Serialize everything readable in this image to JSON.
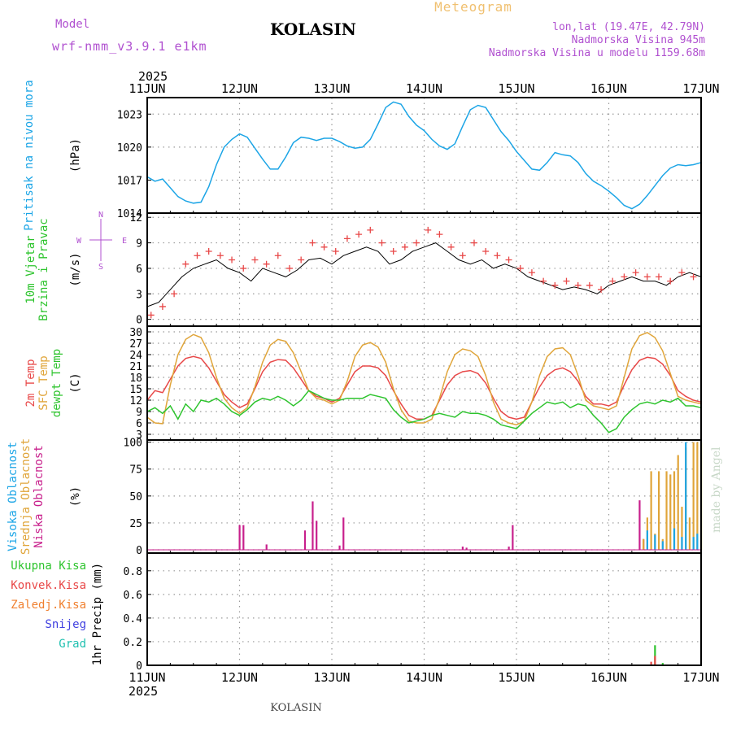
{
  "header": {
    "model_label": "Model",
    "model_name": "wrf-nmm_v3.9.1 e1km",
    "location": "KOLASIN",
    "meteogram_label": "Meteogram",
    "lonlat": "lon,lat (19.47E, 42.79N)",
    "elevation": "Nadmorska Visina 945m",
    "model_elevation": "Nadmorska Visina u modelu 1159.68m",
    "footer_location": "KOLASIN",
    "credit": "made by Angel"
  },
  "time_axis": {
    "year": "2025",
    "ticks": [
      "11JUN",
      "12JUN",
      "13JUN",
      "14JUN",
      "15JUN",
      "16JUN",
      "17JUN"
    ],
    "range_hours": [
      0,
      144
    ]
  },
  "colors": {
    "pressure": "#1ca5e6",
    "temp2m": "#e84848",
    "sfc_temp": "#e0a53a",
    "dewpt": "#2ec42e",
    "high_cloud": "#1ca5e6",
    "mid_cloud": "#e0a53a",
    "low_cloud": "#c8208c",
    "total_precip": "#2ec42e",
    "conv_precip": "#e84848",
    "frozen_precip": "#f08030",
    "snow": "#4040e0",
    "graupel": "#20c0b0",
    "purple_label": "#b050d0",
    "wind_center": "#000000",
    "wind_gust": "#e84848"
  },
  "chart_data": [
    {
      "type": "line",
      "panel": "pressure",
      "ylabel": "(hPa)",
      "side_labels": [
        "Pritisak na nivou mora"
      ],
      "ylim": [
        1014,
        1024.5
      ],
      "yticks": [
        1014,
        1017,
        1020,
        1023
      ],
      "grid": true,
      "series": [
        {
          "name": "Pritisak na nivou mora",
          "color": "#1ca5e6",
          "x": [
            0,
            2,
            4,
            6,
            8,
            10,
            12,
            14,
            16,
            18,
            20,
            22,
            24,
            26,
            28,
            30,
            32,
            34,
            36,
            38,
            40,
            42,
            44,
            46,
            48,
            50,
            52,
            54,
            56,
            58,
            60,
            62,
            64,
            66,
            68,
            70,
            72,
            74,
            76,
            78,
            80,
            82,
            84,
            86,
            88,
            90,
            92,
            94,
            96,
            98,
            100,
            102,
            104,
            106,
            108,
            110,
            112,
            114,
            116,
            118,
            120,
            122,
            124,
            126,
            128,
            130,
            132,
            134,
            136,
            138,
            140,
            142,
            144
          ],
          "y": [
            1017.3,
            1016.9,
            1017.1,
            1016.3,
            1015.5,
            1015.1,
            1014.9,
            1015.0,
            1016.4,
            1018.4,
            1020.0,
            1020.7,
            1021.2,
            1020.9,
            1019.9,
            1018.9,
            1018.0,
            1018.0,
            1019.1,
            1020.4,
            1020.9,
            1020.8,
            1020.6,
            1020.8,
            1020.8,
            1020.5,
            1020.1,
            1019.9,
            1020.0,
            1020.7,
            1022.1,
            1023.6,
            1024.1,
            1023.9,
            1022.8,
            1022.0,
            1021.5,
            1020.7,
            1020.1,
            1019.8,
            1020.3,
            1021.9,
            1023.4,
            1023.8,
            1023.6,
            1022.5,
            1021.4,
            1020.6,
            1019.6,
            1018.8,
            1018.0,
            1017.9,
            1018.6,
            1019.5,
            1019.3,
            1019.2,
            1018.6,
            1017.6,
            1016.9,
            1016.5,
            1016.0,
            1015.4,
            1014.7,
            1014.4,
            1014.8,
            1015.6,
            1016.5,
            1017.4,
            1018.1,
            1018.4,
            1018.3,
            1018.4,
            1018.6
          ]
        }
      ]
    },
    {
      "type": "line",
      "panel": "wind",
      "ylabel": "(m/s)",
      "side_labels": [
        "10m Vjetar",
        "Brzina i Pravac"
      ],
      "direction_key": {
        "w": "W",
        "e": "E",
        "n": "N",
        "s": "S"
      },
      "ylim": [
        -0.8,
        12.5
      ],
      "yticks": [
        0,
        3,
        6,
        9,
        12
      ],
      "grid": true,
      "series": [
        {
          "name": "brzina",
          "color": "#000000",
          "x": [
            0,
            3,
            6,
            9,
            12,
            15,
            18,
            21,
            24,
            27,
            30,
            33,
            36,
            39,
            42,
            45,
            48,
            51,
            54,
            57,
            60,
            63,
            66,
            69,
            72,
            75,
            78,
            81,
            84,
            87,
            90,
            93,
            96,
            99,
            102,
            105,
            108,
            111,
            114,
            117,
            120,
            123,
            126,
            129,
            132,
            135,
            138,
            141,
            144
          ],
          "y": [
            1.5,
            2.0,
            3.5,
            5.0,
            6.0,
            6.5,
            7.0,
            6.0,
            5.5,
            4.5,
            6.0,
            5.5,
            5.0,
            5.8,
            7.0,
            7.2,
            6.5,
            7.5,
            8.0,
            8.5,
            8.0,
            6.5,
            7.0,
            8.0,
            8.5,
            9.0,
            8.0,
            7.0,
            6.5,
            7.0,
            6.0,
            6.5,
            6.0,
            5.0,
            4.5,
            4.0,
            3.5,
            3.8,
            3.5,
            3.0,
            4.0,
            4.5,
            5.0,
            4.5,
            4.5,
            4.0,
            5.0,
            5.5,
            5.0
          ]
        },
        {
          "name": "udari",
          "color": "#e84848",
          "x": [
            1,
            4,
            7,
            10,
            13,
            16,
            19,
            22,
            25,
            28,
            31,
            34,
            37,
            40,
            43,
            46,
            49,
            52,
            55,
            58,
            61,
            64,
            67,
            70,
            73,
            76,
            79,
            82,
            85,
            88,
            91,
            94,
            97,
            100,
            103,
            106,
            109,
            112,
            115,
            118,
            121,
            124,
            127,
            130,
            133,
            136,
            139,
            142
          ],
          "y": [
            0.5,
            1.5,
            3.0,
            6.5,
            7.5,
            8.0,
            7.5,
            7.0,
            6.0,
            7.0,
            6.5,
            7.5,
            6.0,
            7.0,
            9.0,
            8.5,
            8.0,
            9.5,
            10.0,
            10.5,
            9.0,
            8.0,
            8.5,
            9.0,
            10.5,
            10.0,
            8.5,
            7.5,
            9.0,
            8.0,
            7.5,
            7.0,
            6.0,
            5.5,
            4.5,
            4.0,
            4.5,
            4.0,
            4.0,
            3.5,
            4.5,
            5.0,
            5.5,
            5.0,
            5.0,
            4.5,
            5.5,
            5.0
          ]
        }
      ]
    },
    {
      "type": "line",
      "panel": "temperature",
      "ylabel": "(C)",
      "side_labels": [
        "2m Temp",
        "SFC Temp",
        "dewpt Temp"
      ],
      "ylim": [
        1.5,
        31.5
      ],
      "yticks": [
        3,
        6,
        9,
        12,
        15,
        18,
        21,
        24,
        27,
        30
      ],
      "grid": true,
      "series": [
        {
          "name": "2m Temp",
          "color": "#e84848",
          "x": [
            0,
            2,
            4,
            6,
            8,
            10,
            12,
            14,
            16,
            18,
            20,
            22,
            24,
            26,
            28,
            30,
            32,
            34,
            36,
            38,
            40,
            42,
            44,
            46,
            48,
            50,
            52,
            54,
            56,
            58,
            60,
            62,
            64,
            66,
            68,
            70,
            72,
            74,
            76,
            78,
            80,
            82,
            84,
            86,
            88,
            90,
            92,
            94,
            96,
            98,
            100,
            102,
            104,
            106,
            108,
            110,
            112,
            114,
            116,
            118,
            120,
            122,
            124,
            126,
            128,
            130,
            132,
            134,
            136,
            138,
            140,
            142,
            144
          ],
          "y": [
            12.0,
            14.5,
            14.0,
            17.5,
            21.0,
            23.0,
            23.5,
            23.0,
            20.5,
            17.0,
            13.5,
            11.5,
            10.0,
            11.0,
            15.0,
            19.5,
            22.0,
            22.7,
            22.5,
            20.5,
            17.5,
            14.5,
            13.0,
            12.5,
            11.5,
            12.5,
            16.0,
            19.5,
            21.0,
            21.0,
            20.5,
            18.5,
            14.5,
            11.0,
            8.0,
            7.0,
            7.0,
            8.0,
            12.0,
            16.0,
            18.5,
            19.5,
            19.8,
            19.0,
            16.5,
            12.5,
            9.0,
            7.5,
            7.0,
            7.5,
            11.5,
            15.5,
            18.5,
            20.0,
            20.5,
            19.5,
            17.0,
            13.0,
            11.0,
            11.0,
            10.5,
            11.5,
            16.0,
            20.0,
            22.5,
            23.3,
            23.0,
            21.5,
            18.5,
            14.5,
            13.0,
            12.0,
            11.5
          ]
        },
        {
          "name": "SFC Temp",
          "color": "#e0a53a",
          "x": [
            0,
            2,
            4,
            6,
            8,
            10,
            12,
            14,
            16,
            18,
            20,
            22,
            24,
            26,
            28,
            30,
            32,
            34,
            36,
            38,
            40,
            42,
            44,
            46,
            48,
            50,
            52,
            54,
            56,
            58,
            60,
            62,
            64,
            66,
            68,
            70,
            72,
            74,
            76,
            78,
            80,
            82,
            84,
            86,
            88,
            90,
            92,
            94,
            96,
            98,
            100,
            102,
            104,
            106,
            108,
            110,
            112,
            114,
            116,
            118,
            120,
            122,
            124,
            126,
            128,
            130,
            132,
            134,
            136,
            138,
            140,
            142,
            144
          ],
          "y": [
            7.5,
            6.0,
            5.8,
            16.0,
            24.0,
            28.0,
            29.3,
            28.5,
            24.5,
            18.0,
            12.5,
            10.0,
            8.5,
            10.0,
            15.5,
            22.0,
            26.5,
            28.0,
            27.5,
            24.5,
            19.5,
            14.5,
            12.5,
            12.0,
            11.0,
            12.0,
            17.0,
            23.5,
            26.5,
            27.2,
            26.0,
            22.0,
            15.0,
            9.5,
            6.5,
            6.0,
            6.0,
            7.0,
            12.5,
            19.5,
            24.0,
            25.5,
            25.0,
            23.5,
            18.5,
            11.5,
            7.0,
            6.0,
            5.5,
            6.5,
            11.5,
            18.5,
            23.5,
            25.5,
            25.8,
            24.0,
            18.5,
            12.0,
            10.5,
            10.0,
            9.5,
            10.5,
            18.0,
            25.5,
            29.0,
            29.8,
            28.5,
            25.0,
            19.0,
            13.0,
            12.0,
            11.5,
            11.0
          ]
        },
        {
          "name": "dewpt Temp",
          "color": "#2ec42e",
          "x": [
            0,
            2,
            4,
            6,
            8,
            10,
            12,
            14,
            16,
            18,
            20,
            22,
            24,
            26,
            28,
            30,
            32,
            34,
            36,
            38,
            40,
            42,
            44,
            46,
            48,
            50,
            52,
            54,
            56,
            58,
            60,
            62,
            64,
            66,
            68,
            70,
            72,
            74,
            76,
            78,
            80,
            82,
            84,
            86,
            88,
            90,
            92,
            94,
            96,
            98,
            100,
            102,
            104,
            106,
            108,
            110,
            112,
            114,
            116,
            118,
            120,
            122,
            124,
            126,
            128,
            130,
            132,
            134,
            136,
            138,
            140,
            142,
            144
          ],
          "y": [
            9.0,
            10.0,
            8.5,
            10.5,
            7.0,
            11.0,
            9.0,
            12.0,
            11.5,
            12.5,
            11.0,
            9.0,
            8.0,
            9.5,
            11.5,
            12.5,
            12.0,
            13.0,
            12.0,
            10.5,
            12.0,
            14.5,
            13.5,
            12.5,
            12.0,
            12.0,
            12.5,
            12.5,
            12.5,
            13.5,
            13.0,
            12.5,
            9.5,
            7.5,
            6.0,
            6.5,
            7.0,
            8.0,
            8.5,
            8.0,
            7.5,
            9.0,
            8.5,
            8.5,
            8.0,
            7.0,
            5.5,
            5.0,
            4.5,
            6.5,
            8.5,
            10.0,
            11.5,
            11.0,
            11.5,
            10.0,
            11.0,
            10.5,
            8.0,
            6.0,
            3.5,
            4.5,
            7.5,
            9.5,
            11.0,
            11.5,
            11.0,
            12.0,
            11.5,
            12.5,
            10.5,
            10.5,
            10.0
          ]
        }
      ]
    },
    {
      "type": "bar",
      "panel": "cloud",
      "ylabel": "(%)",
      "side_labels": [
        "Visoka Oblacnost",
        "Srednja Oblacnost",
        "Niska Oblacnost"
      ],
      "ylim": [
        -3,
        102
      ],
      "yticks": [
        0,
        25,
        50,
        75,
        100
      ],
      "grid": true,
      "series": [
        {
          "name": "Niska Oblacnost",
          "color": "#c8208c",
          "x": [
            24,
            25,
            31,
            41,
            43,
            44,
            50,
            51,
            82,
            83,
            94,
            95,
            128,
            129
          ],
          "y": [
            23,
            23,
            5,
            18,
            45,
            27,
            4,
            30,
            3,
            2,
            3,
            23,
            46,
            10
          ]
        },
        {
          "name": "Srednja Oblacnost",
          "color": "#e0a53a",
          "x": [
            129,
            130,
            131,
            132,
            133,
            134,
            135,
            136,
            137,
            138,
            139,
            140,
            141,
            142,
            143,
            144
          ],
          "y": [
            10,
            30,
            73,
            15,
            73,
            10,
            73,
            70,
            73,
            88,
            40,
            95,
            30,
            100,
            100,
            100
          ]
        },
        {
          "name": "Visoka Oblacnost",
          "color": "#1ca5e6",
          "x": [
            130,
            132,
            134,
            137,
            139,
            140,
            142,
            143
          ],
          "y": [
            18,
            14,
            8,
            20,
            12,
            100,
            12,
            15
          ]
        }
      ]
    },
    {
      "type": "bar",
      "panel": "precip",
      "ylabel": "1hr Precip (mm)",
      "side_labels": [
        "Ukupna Kisa",
        "Konvek.Kisa",
        "Zaledj.Kisa",
        "Snijeg",
        "Grad"
      ],
      "ylim": [
        0,
        0.95
      ],
      "yticks": [
        0,
        0.2,
        0.4,
        0.6,
        0.8
      ],
      "grid": true,
      "series": [
        {
          "name": "Ukupna Kisa",
          "color": "#2ec42e",
          "x": [
            132,
            134
          ],
          "y": [
            0.17,
            0.02
          ]
        },
        {
          "name": "Konvek.Kisa",
          "color": "#e84848",
          "x": [
            131,
            132
          ],
          "y": [
            0.03,
            0.08
          ]
        }
      ]
    }
  ]
}
